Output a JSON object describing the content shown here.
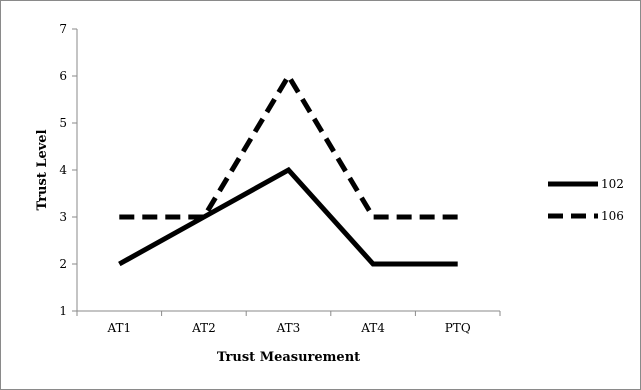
{
  "chart_data": {
    "type": "line",
    "title": "",
    "xlabel": "Trust Measurement",
    "ylabel": "Trust Level",
    "categories": [
      "AT1",
      "AT2",
      "AT3",
      "AT4",
      "PTQ"
    ],
    "ylim": [
      1,
      7
    ],
    "yticks": [
      "1",
      "2",
      "3",
      "4",
      "5",
      "6",
      "7"
    ],
    "grid": false,
    "legend_position": "right",
    "series": [
      {
        "name": "102",
        "values": [
          2,
          3,
          4,
          2,
          2
        ],
        "color": "#000000",
        "line_style": "solid"
      },
      {
        "name": "106",
        "values": [
          3,
          3,
          6,
          3,
          3
        ],
        "color": "#000000",
        "line_style": "dashed"
      }
    ]
  }
}
